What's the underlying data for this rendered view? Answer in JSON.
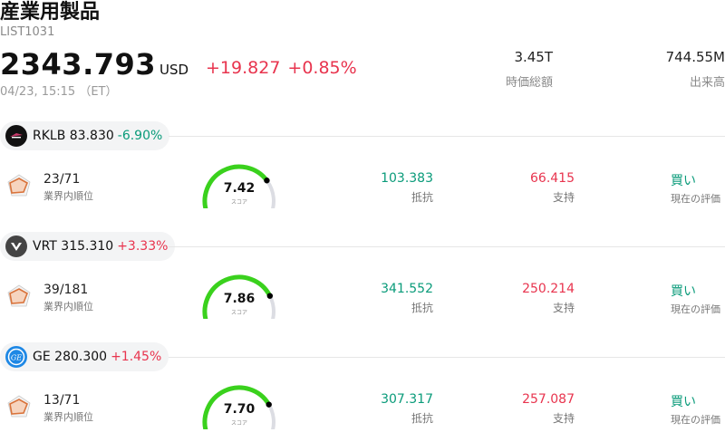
{
  "header": {
    "title": "産業用製品",
    "code": "LIST1031",
    "price": "2343.793",
    "currency": "USD",
    "change": "+19.827",
    "change_pct": "+0.85%",
    "timestamp": "04/23, 15:15 （ET）",
    "market_cap": {
      "value": "3.45T",
      "label": "時価総額"
    },
    "volume": {
      "value": "744.55M",
      "label": "出来高"
    }
  },
  "labels": {
    "rank": "業界内順位",
    "score": "スコア",
    "resistance": "抵抗",
    "support": "支持",
    "rating": "現在の評価"
  },
  "stocks": [
    {
      "ticker": "RKLB",
      "price": "83.830",
      "change": "-6.90%",
      "direction": "down",
      "logo_icon": "rocket-lab-logo",
      "rank": "23/71",
      "score": "7.42",
      "score_fraction": 0.742,
      "resistance": "103.383",
      "support": "66.415",
      "rating": "買い"
    },
    {
      "ticker": "VRT",
      "price": "315.310",
      "change": "+3.33%",
      "direction": "up",
      "logo_icon": "vertiv-logo",
      "rank": "39/181",
      "score": "7.86",
      "score_fraction": 0.786,
      "resistance": "341.552",
      "support": "250.214",
      "rating": "買い"
    },
    {
      "ticker": "GE",
      "price": "280.300",
      "change": "+1.45%",
      "direction": "up",
      "logo_icon": "ge-logo",
      "rank": "13/71",
      "score": "7.70",
      "score_fraction": 0.77,
      "resistance": "307.317",
      "support": "257.087",
      "rating": "買い"
    }
  ],
  "colors": {
    "up": "#e8344e",
    "down": "#0a9b7a",
    "gauge": "#3ad11d",
    "gauge_track": "#dcdde3",
    "radar": "#d9733b"
  }
}
